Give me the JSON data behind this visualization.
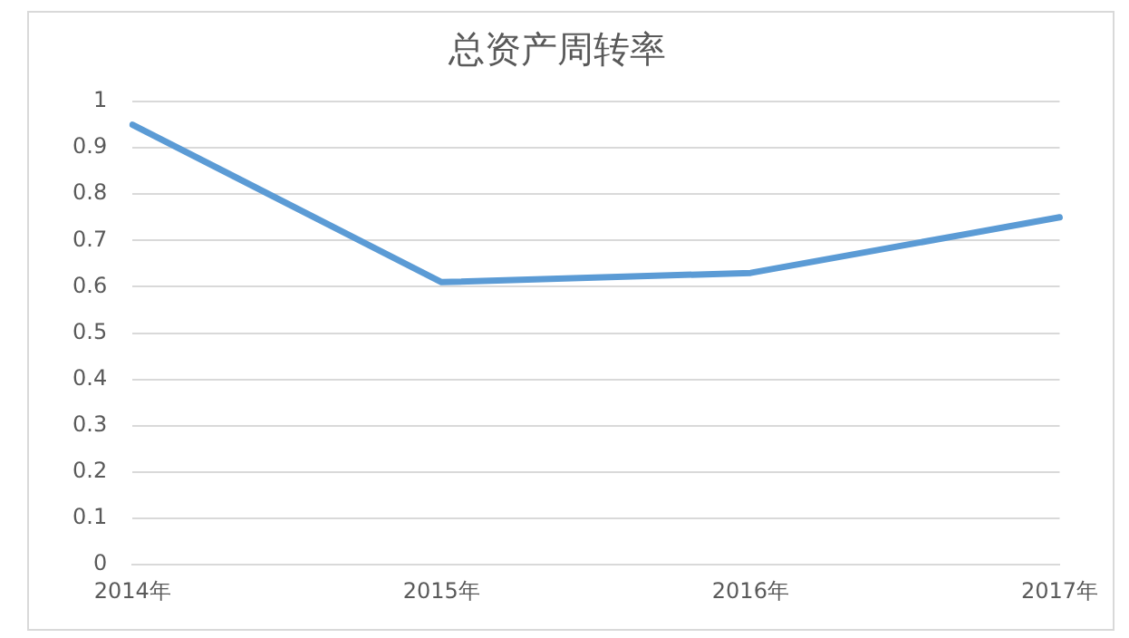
{
  "chart_data": {
    "type": "line",
    "title": "总资产周转率",
    "categories": [
      "2014年",
      "2015年",
      "2016年",
      "2017年"
    ],
    "series": [
      {
        "color": "#5b9bd5",
        "values": [
          0.95,
          0.61,
          0.63,
          0.75
        ]
      }
    ],
    "ylim": [
      0,
      1
    ],
    "yticks": [
      0,
      0.1,
      0.2,
      0.3,
      0.4,
      0.5,
      0.6,
      0.7,
      0.8,
      0.9,
      1
    ],
    "grid": "y",
    "legend": false,
    "marker": "none",
    "line_style": "solid"
  }
}
